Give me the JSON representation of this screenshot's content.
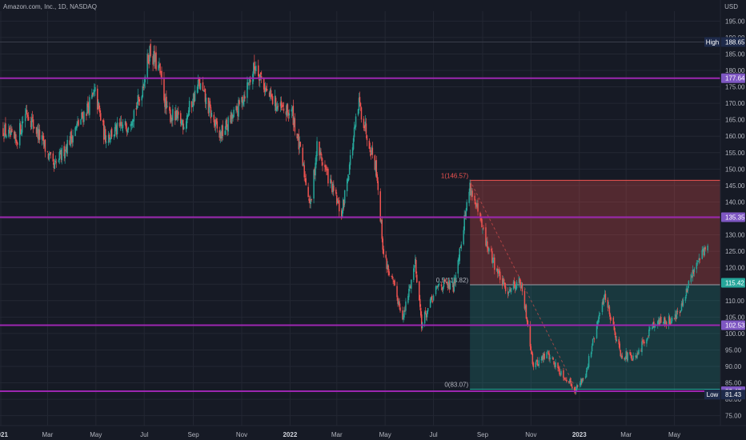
{
  "header": {
    "title": "Amazon.com, Inc., 1D, NASDAQ",
    "currency": "USD"
  },
  "colors": {
    "background": "#161a25",
    "grid": "#232733",
    "axis_text": "#b2b5be",
    "up": "#26a69a",
    "down": "#ef5350",
    "level_line": "#9c27b0",
    "level_label": "#7e57c2",
    "red_zone": "#ef5350",
    "green_zone": "#26a69a",
    "high_low_label": "#1e2a4a"
  },
  "chart_data": {
    "type": "candlestick",
    "title": "Amazon.com, Inc., 1D, NASDAQ",
    "y_axis_unit": "USD",
    "ylim": [
      72,
      198
    ],
    "y_ticks": [
      75,
      80,
      85,
      90,
      95,
      100,
      105,
      110,
      115,
      120,
      125,
      130,
      135,
      140,
      145,
      150,
      155,
      160,
      165,
      170,
      175,
      180,
      185,
      190,
      195
    ],
    "x_range": [
      "2020-12-31",
      "2023-06-28"
    ],
    "x_ticks": [
      {
        "date": "2021-01-01",
        "label": "2021",
        "bold": true
      },
      {
        "date": "2021-03-01",
        "label": "Mar"
      },
      {
        "date": "2021-05-01",
        "label": "May"
      },
      {
        "date": "2021-07-01",
        "label": "Jul"
      },
      {
        "date": "2021-09-01",
        "label": "Sep"
      },
      {
        "date": "2021-11-01",
        "label": "Nov"
      },
      {
        "date": "2022-01-01",
        "label": "2022",
        "bold": true
      },
      {
        "date": "2022-03-01",
        "label": "Mar"
      },
      {
        "date": "2022-05-01",
        "label": "May"
      },
      {
        "date": "2022-07-01",
        "label": "Jul"
      },
      {
        "date": "2022-09-01",
        "label": "Sep"
      },
      {
        "date": "2022-11-01",
        "label": "Nov"
      },
      {
        "date": "2023-01-01",
        "label": "2023",
        "bold": true
      },
      {
        "date": "2023-03-01",
        "label": "Mar"
      },
      {
        "date": "2023-05-01",
        "label": "May"
      }
    ],
    "price_path": [
      [
        "2021-01-04",
        162
      ],
      [
        "2021-01-20",
        158
      ],
      [
        "2021-02-02",
        168
      ],
      [
        "2021-02-25",
        157
      ],
      [
        "2021-03-09",
        150
      ],
      [
        "2021-03-22",
        156
      ],
      [
        "2021-04-12",
        165
      ],
      [
        "2021-04-30",
        173
      ],
      [
        "2021-05-12",
        160
      ],
      [
        "2021-06-08",
        163
      ],
      [
        "2021-06-25",
        171
      ],
      [
        "2021-07-08",
        186
      ],
      [
        "2021-07-20",
        180
      ],
      [
        "2021-07-30",
        167
      ],
      [
        "2021-08-20",
        164
      ],
      [
        "2021-09-08",
        176
      ],
      [
        "2021-10-04",
        160
      ],
      [
        "2021-10-27",
        168
      ],
      [
        "2021-11-19",
        182
      ],
      [
        "2021-12-03",
        173
      ],
      [
        "2021-12-20",
        168
      ],
      [
        "2022-01-04",
        167
      ],
      [
        "2022-01-27",
        139
      ],
      [
        "2022-02-04",
        157
      ],
      [
        "2022-03-07",
        136
      ],
      [
        "2022-03-29",
        170
      ],
      [
        "2022-04-20",
        150
      ],
      [
        "2022-04-29",
        124
      ],
      [
        "2022-05-24",
        105
      ],
      [
        "2022-06-08",
        122
      ],
      [
        "2022-06-16",
        103
      ],
      [
        "2022-07-08",
        115
      ],
      [
        "2022-07-26",
        114
      ],
      [
        "2022-08-16",
        145
      ],
      [
        "2022-09-06",
        127
      ],
      [
        "2022-09-30",
        113
      ],
      [
        "2022-10-18",
        116
      ],
      [
        "2022-10-28",
        103
      ],
      [
        "2022-11-04",
        90
      ],
      [
        "2022-11-22",
        94
      ],
      [
        "2022-12-06",
        89
      ],
      [
        "2022-12-28",
        83
      ],
      [
        "2023-01-09",
        88
      ],
      [
        "2023-02-02",
        112
      ],
      [
        "2023-02-22",
        94
      ],
      [
        "2023-03-13",
        92
      ],
      [
        "2023-04-03",
        103
      ],
      [
        "2023-04-25",
        104
      ],
      [
        "2023-05-09",
        107
      ],
      [
        "2023-05-26",
        120
      ],
      [
        "2023-06-02",
        124
      ],
      [
        "2023-06-12",
        126
      ]
    ],
    "levels": [
      {
        "name": "177.64",
        "value": 177.64
      },
      {
        "name": "135.35",
        "value": 135.35
      },
      {
        "name": "102.53",
        "value": 102.53
      },
      {
        "name": "82.47",
        "value": 82.47
      }
    ],
    "high": {
      "label": "High",
      "value": "188.65"
    },
    "low": {
      "label": "Low",
      "value": "81.43"
    },
    "last_price": "115.42",
    "fib": {
      "start_date": "2022-08-16",
      "end_date": "2023-06-28",
      "line_start": [
        "2022-08-16",
        146.57
      ],
      "line_end": [
        "2022-12-28",
        83.07
      ],
      "levels": [
        {
          "ratio_label": "1(146.57)",
          "value": 146.57
        },
        {
          "ratio_label": "0.5(114.82)",
          "value": 114.82
        },
        {
          "ratio_label": "0(83.07)",
          "value": 83.07
        }
      ]
    }
  }
}
